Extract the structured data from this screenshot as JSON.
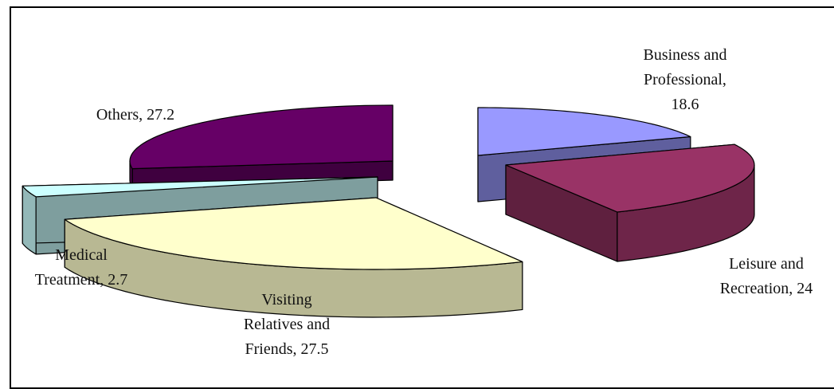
{
  "chart_data": {
    "type": "pie",
    "title": "",
    "categories": [
      "Business and Professional",
      "Leisure and Recreation",
      "Visiting Relatives and Friends",
      "Medical Treatment",
      "Others"
    ],
    "values": [
      18.6,
      24,
      27.5,
      2.7,
      27.2
    ],
    "colors": [
      "#9999ff",
      "#993366",
      "#ffffcc",
      "#ccffff",
      "#660066"
    ],
    "legend": "none",
    "data_labels": [
      [
        "Business and",
        "Professional,",
        "18.6"
      ],
      [
        "Leisure and",
        "Recreation, 24"
      ],
      [
        "Visiting",
        "Relatives and",
        "Friends, 27.5"
      ],
      [
        "Medical",
        "Treatment, 2.7"
      ],
      [
        "Others, 27.2"
      ]
    ]
  }
}
